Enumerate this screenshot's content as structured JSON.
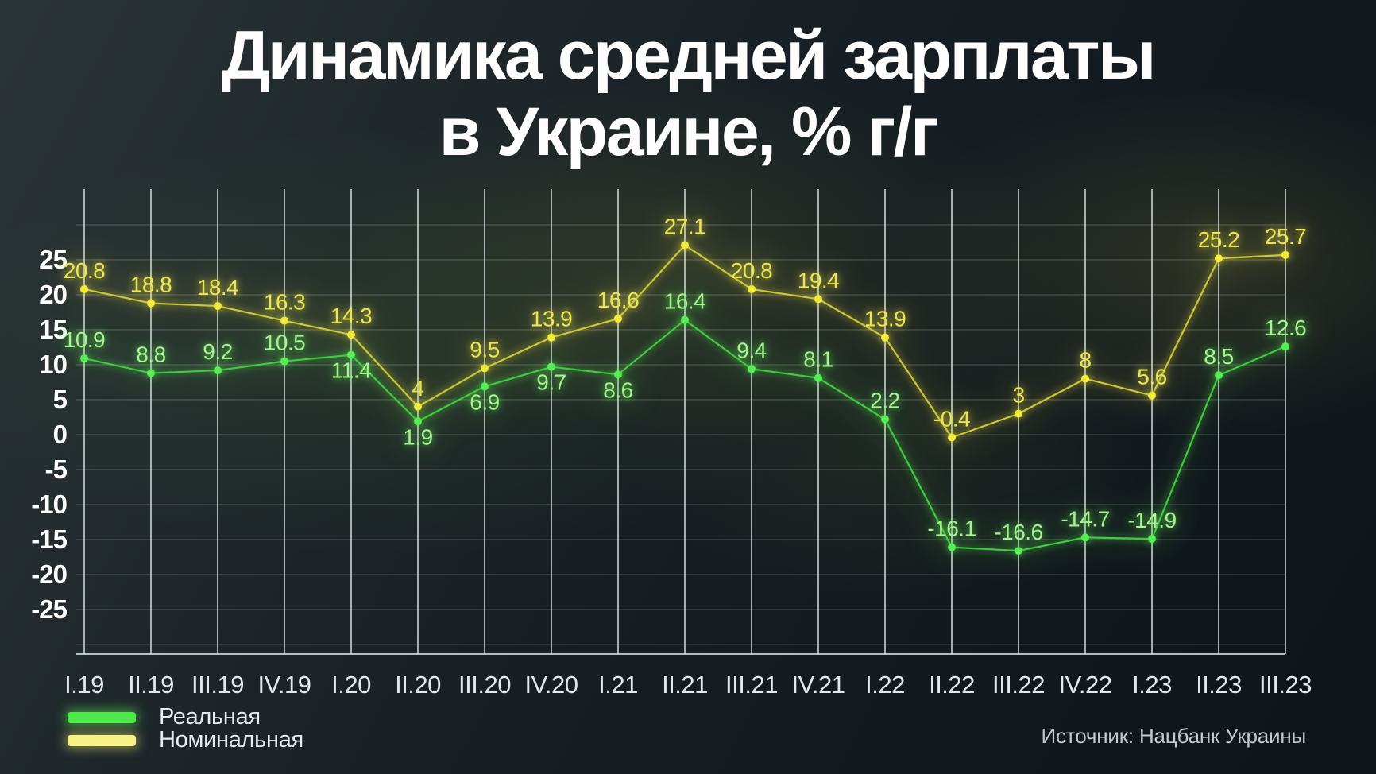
{
  "title": {
    "line1": "Динамика средней зарплаты",
    "line2": "в Украине, % г/г"
  },
  "legend": [
    {
      "label": "Реальная",
      "color": "#4fe94c"
    },
    {
      "label": "Номинальная",
      "color": "#f6f286"
    }
  ],
  "source": "Источник: Нацбанк Украины",
  "chart_data": {
    "type": "line",
    "title": "Динамика средней зарплаты в Украине, % г/г",
    "categories": [
      "I.19",
      "II.19",
      "III.19",
      "IV.19",
      "I.20",
      "II.20",
      "III.20",
      "IV.20",
      "I.21",
      "II.21",
      "III.21",
      "IV.21",
      "I.22",
      "II.22",
      "III.22",
      "IV.22",
      "I.23",
      "II.23",
      "III.23"
    ],
    "series": [
      {
        "name": "Номинальная",
        "line_color": "#cdc63d",
        "point_color": "#f3ea3b",
        "label_color": "#ece455",
        "glow": "yellow",
        "values": [
          20.8,
          18.8,
          18.4,
          16.3,
          14.3,
          4,
          9.5,
          13.9,
          16.6,
          27.1,
          20.8,
          19.4,
          13.9,
          -0.4,
          3,
          8,
          5.6,
          25.2,
          25.7
        ],
        "label_side": [
          "above",
          "above",
          "above",
          "above",
          "above",
          "above",
          "above",
          "above",
          "above",
          "above",
          "above",
          "above",
          "above",
          "above",
          "above",
          "above",
          "above",
          "above",
          "above"
        ]
      },
      {
        "name": "Реальная",
        "line_color": "#3ecb3e",
        "point_color": "#55ee55",
        "label_color": "#a8f291",
        "glow": "green",
        "values": [
          10.9,
          8.8,
          9.2,
          10.5,
          11.4,
          1.9,
          6.9,
          9.7,
          8.6,
          16.4,
          9.4,
          8.1,
          2.2,
          -16.1,
          -16.6,
          -14.7,
          -14.9,
          8.5,
          12.6
        ],
        "label_side": [
          "above",
          "above",
          "above",
          "above",
          "below",
          "below",
          "below",
          "below",
          "below",
          "above",
          "above",
          "above",
          "above",
          "above",
          "above",
          "above",
          "above",
          "above",
          "above"
        ]
      }
    ],
    "yticks": [
      25,
      20,
      15,
      10,
      5,
      0,
      -5,
      -10,
      -15,
      -20,
      -25
    ],
    "ylim": [
      -31.5,
      36.5
    ],
    "grid": {
      "vertical": true,
      "horizontal_step": 5,
      "horizontal_range": [
        -30,
        30
      ]
    },
    "legend_position": "bottom-left",
    "xlabel": "",
    "ylabel": ""
  }
}
